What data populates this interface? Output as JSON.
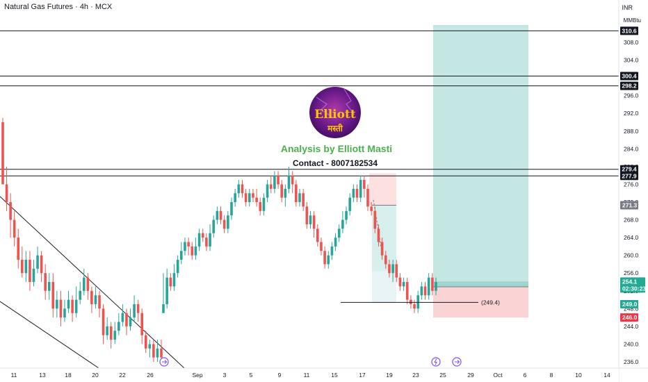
{
  "header": {
    "title": "Natural Gas Futures · 4h · MCX",
    "currency": "INR",
    "unit": "MMBtu"
  },
  "branding": {
    "logo_line1": "Elliott",
    "logo_line2": "मस्ती",
    "title": "Analysis by Elliott Masti",
    "contact": "Contact - 8007182534"
  },
  "colors": {
    "up": "#26a69a",
    "down": "#ef5350",
    "brand_green": "#4caf50",
    "target_zone": "#b2dfdb",
    "stop_zone": "#f8c5c5",
    "line": "#131722"
  },
  "chart_data": {
    "type": "candlestick",
    "symbol": "Natural Gas Futures",
    "timeframe": "4h",
    "exchange": "MCX",
    "y_axis": {
      "ticks": [
        236.0,
        240.0,
        244.0,
        248.0,
        252.0,
        256.0,
        260.0,
        264.0,
        268.0,
        272.0,
        276.0,
        280.0,
        284.0,
        288.0,
        292.0,
        296.0,
        300.0,
        304.0,
        308.0
      ],
      "range": [
        234.5,
        314.5
      ]
    },
    "x_axis": {
      "ticks": [
        "11",
        "13",
        "18",
        "20",
        "22",
        "26",
        "Sep",
        "3",
        "5",
        "9",
        "11",
        "15",
        "17",
        "19",
        "23",
        "25",
        "29",
        "Oct",
        "6",
        "8",
        "10",
        "14"
      ]
    },
    "horizontal_levels": [
      {
        "value": 310.6,
        "label": "310.6"
      },
      {
        "value": 300.4,
        "label": "300.4"
      },
      {
        "value": 298.2,
        "label": "298.2"
      },
      {
        "value": 279.4,
        "label": "279.4"
      },
      {
        "value": 277.9,
        "label": "277.9"
      }
    ],
    "price_tags": [
      {
        "value": 271.3,
        "label": "271.3",
        "style": "gray"
      },
      {
        "value": 254.1,
        "label": "254.1",
        "sublabel": "02:30:23",
        "style": "green"
      },
      {
        "value": 249.0,
        "label": "249.0",
        "style": "green"
      },
      {
        "value": 246.0,
        "label": "246.0",
        "style": "red"
      }
    ],
    "annotation": {
      "value": 249.4,
      "label": "(249.4)"
    },
    "position_zones": [
      {
        "kind": "short",
        "entry": 271.3,
        "stop": 278.5,
        "target": 250.5
      },
      {
        "kind": "long",
        "entry": 252.9,
        "stop": 246.0,
        "target": 315.0
      }
    ],
    "trendlines": "descending channel from early August to late August",
    "candles": [
      [
        290,
        276,
        291,
        276
      ],
      [
        276,
        272,
        280,
        270
      ],
      [
        272,
        268,
        274,
        264
      ],
      [
        268,
        264,
        270,
        262
      ],
      [
        264,
        259,
        266,
        257
      ],
      [
        259,
        256,
        262,
        255
      ],
      [
        256,
        259,
        261,
        254
      ],
      [
        259,
        254,
        261,
        252
      ],
      [
        254,
        257,
        259,
        253
      ],
      [
        257,
        260,
        262,
        256
      ],
      [
        260,
        256,
        261,
        254
      ],
      [
        256,
        252,
        258,
        250
      ],
      [
        252,
        254,
        256,
        250
      ],
      [
        254,
        248,
        256,
        246
      ],
      [
        248,
        250,
        252,
        246
      ],
      [
        250,
        246,
        252,
        244
      ],
      [
        246,
        248,
        250,
        245
      ],
      [
        248,
        250,
        252,
        247
      ],
      [
        250,
        247,
        251,
        245
      ],
      [
        247,
        250,
        253,
        246
      ],
      [
        250,
        252,
        254,
        249
      ],
      [
        252,
        255,
        257,
        251
      ],
      [
        255,
        252,
        256,
        250
      ],
      [
        252,
        249,
        253,
        247
      ],
      [
        249,
        251,
        253,
        248
      ],
      [
        251,
        248,
        252,
        246
      ],
      [
        248,
        242,
        249,
        240
      ],
      [
        242,
        244,
        246,
        241
      ],
      [
        244,
        241,
        245,
        239
      ],
      [
        241,
        243,
        245,
        240
      ],
      [
        243,
        245,
        247,
        242
      ],
      [
        245,
        247,
        249,
        244
      ],
      [
        247,
        244,
        248,
        242
      ],
      [
        244,
        246,
        248,
        243
      ],
      [
        246,
        249,
        251,
        245
      ],
      [
        249,
        247,
        250,
        245
      ],
      [
        247,
        242,
        248,
        240
      ],
      [
        242,
        239,
        243,
        238
      ],
      [
        239,
        240,
        241,
        237
      ],
      [
        240,
        237,
        241,
        236
      ],
      [
        237,
        239,
        241,
        236
      ],
      [
        239,
        237,
        241,
        236
      ],
      [
        247,
        249,
        256,
        247
      ],
      [
        249,
        255,
        257,
        248
      ],
      [
        255,
        253,
        256,
        252
      ],
      [
        253,
        256,
        258,
        252
      ],
      [
        256,
        259,
        260,
        255
      ],
      [
        259,
        261,
        263,
        258
      ],
      [
        261,
        263,
        264,
        260
      ],
      [
        263,
        262,
        264,
        260
      ],
      [
        262,
        260,
        263,
        259
      ],
      [
        260,
        262,
        264,
        259
      ],
      [
        262,
        265,
        266,
        261
      ],
      [
        265,
        264,
        266,
        263
      ],
      [
        264,
        262,
        265,
        261
      ],
      [
        262,
        265,
        267,
        261
      ],
      [
        265,
        268,
        269,
        264
      ],
      [
        268,
        270,
        271,
        267
      ],
      [
        270,
        268,
        271,
        267
      ],
      [
        268,
        266,
        269,
        265
      ],
      [
        266,
        269,
        270,
        265
      ],
      [
        269,
        272,
        273,
        268
      ],
      [
        272,
        274,
        275,
        271
      ],
      [
        274,
        276,
        277,
        273
      ],
      [
        276,
        274,
        277,
        273
      ],
      [
        274,
        272,
        275,
        271
      ],
      [
        272,
        274,
        275,
        271
      ],
      [
        274,
        273,
        275,
        272
      ],
      [
        273,
        272,
        275,
        271
      ],
      [
        272,
        270,
        273,
        269
      ],
      [
        270,
        273,
        274,
        269
      ],
      [
        273,
        276,
        277,
        272
      ],
      [
        276,
        275,
        278,
        274
      ],
      [
        275,
        278,
        279,
        274
      ],
      [
        278,
        276,
        279,
        275
      ],
      [
        276,
        273,
        277,
        272
      ],
      [
        273,
        275,
        276,
        271
      ],
      [
        275,
        278,
        280,
        274
      ],
      [
        278,
        276,
        279,
        274
      ],
      [
        276,
        272,
        277,
        271
      ],
      [
        272,
        274,
        275,
        271
      ],
      [
        274,
        271,
        275,
        270
      ],
      [
        271,
        267,
        272,
        266
      ],
      [
        267,
        269,
        270,
        266
      ],
      [
        269,
        266,
        270,
        264
      ],
      [
        266,
        263,
        267,
        262
      ],
      [
        263,
        261,
        264,
        260
      ],
      [
        261,
        258,
        262,
        257
      ],
      [
        258,
        260,
        261,
        257
      ],
      [
        260,
        262,
        263,
        259
      ],
      [
        262,
        264,
        265,
        261
      ],
      [
        264,
        266,
        267,
        263
      ],
      [
        266,
        268,
        270,
        265
      ],
      [
        268,
        270,
        271,
        267
      ],
      [
        270,
        273,
        274,
        269
      ],
      [
        273,
        275,
        276,
        272
      ],
      [
        275,
        273,
        276,
        272
      ],
      [
        273,
        277,
        278,
        272
      ],
      [
        277,
        275,
        278,
        273
      ],
      [
        275,
        271,
        276,
        270
      ],
      [
        271,
        270,
        272,
        269
      ],
      [
        270,
        266,
        271,
        265
      ],
      [
        266,
        263,
        267,
        262
      ],
      [
        263,
        260,
        264,
        259
      ],
      [
        260,
        258,
        261,
        257
      ],
      [
        258,
        256,
        259,
        255
      ],
      [
        256,
        258,
        259,
        254
      ],
      [
        258,
        255,
        259,
        254
      ],
      [
        255,
        253,
        256,
        252
      ],
      [
        253,
        254,
        255,
        252
      ],
      [
        254,
        250,
        255,
        249
      ],
      [
        250,
        249,
        251,
        248
      ],
      [
        249,
        248,
        250,
        247
      ],
      [
        248,
        251,
        252,
        247
      ],
      [
        251,
        253,
        254,
        250
      ],
      [
        253,
        251,
        254,
        250
      ],
      [
        251,
        255,
        256,
        250
      ],
      [
        255,
        252,
        256,
        251
      ],
      [
        252,
        254,
        255,
        251
      ]
    ]
  }
}
